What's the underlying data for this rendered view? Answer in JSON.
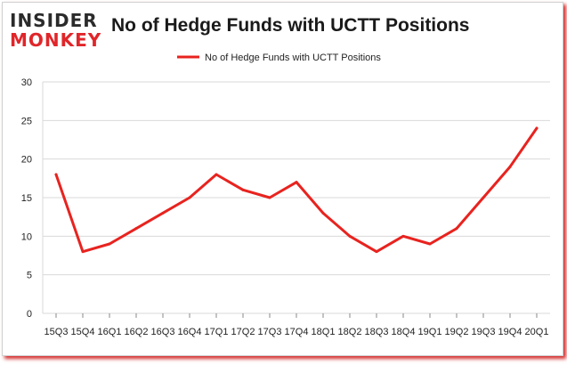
{
  "logo": {
    "top": "INSIDER",
    "bottom": "MONKEY"
  },
  "title": "No of Hedge Funds with UCTT Positions",
  "colors": {
    "line": "#e8231f",
    "grid": "#d9d9d9",
    "logo_red": "#e0262a"
  },
  "chart_data": {
    "type": "line",
    "title": "No of Hedge Funds with UCTT Positions",
    "xlabel": "",
    "ylabel": "",
    "ylim": [
      0,
      30
    ],
    "yticks": [
      0,
      5,
      10,
      15,
      20,
      25,
      30
    ],
    "grid": true,
    "legend_position": "top-center",
    "categories": [
      "2015Q3",
      "2015Q4",
      "2016Q1",
      "2016Q2",
      "2016Q3",
      "2016Q4",
      "2017Q1",
      "2017Q2",
      "2017Q3",
      "2017Q4",
      "2018Q1",
      "2018Q2",
      "2018Q3",
      "2018Q4",
      "2019Q1",
      "2019Q2",
      "2019Q3",
      "2019Q4",
      "2020Q1"
    ],
    "tick_labels": [
      "15Q3",
      "15Q4",
      "16Q1",
      "16Q2",
      "16Q3",
      "16Q4",
      "17Q1",
      "17Q2",
      "17Q3",
      "17Q4",
      "18Q1",
      "18Q2",
      "18Q3",
      "18Q4",
      "19Q1",
      "19Q2",
      "19Q3",
      "19Q4",
      "20Q1"
    ],
    "series": [
      {
        "name": "No of Hedge Funds with UCTT Positions",
        "values": [
          18,
          8,
          9,
          11,
          13,
          15,
          18,
          16,
          15,
          17,
          13,
          10,
          8,
          10,
          9,
          11,
          15,
          19,
          24
        ]
      }
    ]
  }
}
